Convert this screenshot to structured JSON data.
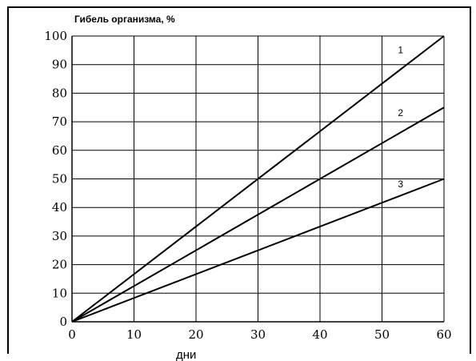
{
  "chart_data": {
    "type": "line",
    "ylabel": "Гибель организма, %",
    "xlabel": "дни",
    "xlim": [
      0,
      60
    ],
    "ylim": [
      0,
      100
    ],
    "xticks": [
      0,
      10,
      20,
      30,
      40,
      50,
      60
    ],
    "yticks": [
      0,
      10,
      20,
      30,
      40,
      50,
      60,
      70,
      80,
      90,
      100
    ],
    "grid": true,
    "series": [
      {
        "label": "1",
        "x": [
          0,
          60
        ],
        "y": [
          0,
          100
        ],
        "label_at": [
          53,
          94
        ]
      },
      {
        "label": "2",
        "x": [
          0,
          60
        ],
        "y": [
          0,
          75
        ],
        "label_at": [
          53,
          72
        ]
      },
      {
        "label": "3",
        "x": [
          0,
          60
        ],
        "y": [
          0,
          50
        ],
        "label_at": [
          53,
          47
        ]
      }
    ]
  }
}
